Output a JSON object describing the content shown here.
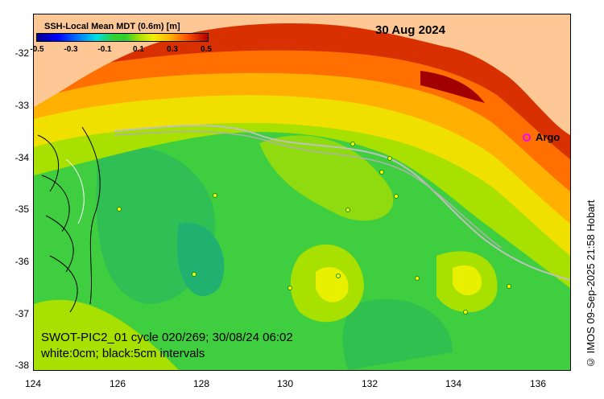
{
  "map": {
    "title": "SSH-Local Mean MDT (0.6m) [m]",
    "date": "30 Aug 2024",
    "caption_line1": "SWOT-PIC2_01 cycle 020/269; 30/08/24 06:02",
    "caption_line2": "white:0cm; black:5cm intervals",
    "credit": "© IMOS 09-Sep-2025 21:58 Hobart",
    "argo_label": "Argo",
    "colorbar_ticks": [
      "-0.5",
      "-0.3",
      "-0.1",
      "0.1",
      "0.3",
      "0.5"
    ],
    "y_ticks": [
      "-32",
      "-33",
      "-34",
      "-35",
      "-36",
      "-37",
      "-38"
    ],
    "x_ticks": [
      "124",
      "126",
      "128",
      "130",
      "132",
      "134",
      "136"
    ],
    "colors": {
      "land": "#fdc895",
      "sea_green": "#3fce3f",
      "high": "#c01000",
      "yellow": "#e8f000"
    }
  }
}
